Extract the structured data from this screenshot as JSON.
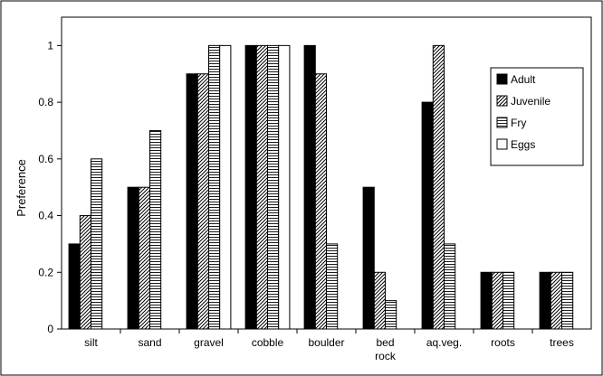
{
  "chart_data": {
    "type": "bar",
    "title": "",
    "xlabel": "",
    "ylabel": "Preference",
    "ylim": [
      0,
      1.1
    ],
    "yticks": [
      0,
      0.2,
      0.4,
      0.6,
      0.8,
      1
    ],
    "ytick_labels": [
      "0",
      "0.2",
      "0.4",
      "0.6",
      "0.8",
      "1"
    ],
    "categories": [
      "silt",
      "sand",
      "gravel",
      "cobble",
      "boulder",
      "bed\nrock",
      "aq.veg.",
      "roots",
      "trees"
    ],
    "legend_position": "right",
    "grid": false,
    "series": [
      {
        "name": "Adult",
        "pattern": "solid-black",
        "values": [
          0.3,
          0.5,
          0.9,
          1.0,
          1.0,
          0.5,
          0.8,
          0.2,
          0.2
        ]
      },
      {
        "name": "Juvenile",
        "pattern": "diagonal-hatch",
        "values": [
          0.4,
          0.5,
          0.9,
          1.0,
          0.9,
          0.2,
          1.0,
          0.2,
          0.2
        ]
      },
      {
        "name": "Fry",
        "pattern": "horizontal-lines",
        "values": [
          0.6,
          0.7,
          1.0,
          1.0,
          0.3,
          0.1,
          0.3,
          0.2,
          0.2
        ]
      },
      {
        "name": "Eggs",
        "pattern": "white",
        "values": [
          null,
          null,
          1.0,
          1.0,
          null,
          null,
          null,
          null,
          null
        ]
      }
    ]
  }
}
